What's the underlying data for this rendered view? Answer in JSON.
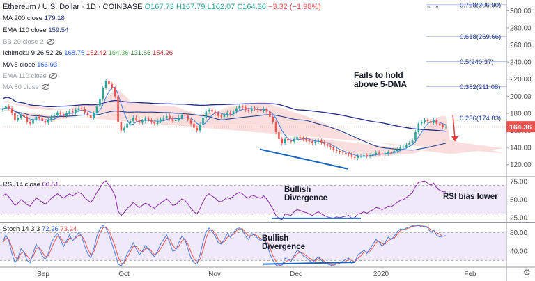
{
  "header": {
    "symbol": "Ethereum / U.S. Dollar · 1D · COINBASE",
    "open": "O167.73",
    "high": "H167.79",
    "low": "L162.07",
    "close": "C164.36",
    "change": "−3.32 (−1.98%)"
  },
  "legend": {
    "ma200": {
      "label": "MA 200 close",
      "value": "179.18"
    },
    "ema110": {
      "label": "EMA 110 close",
      "value": "159.54"
    },
    "bb": {
      "label": "BB 20 close 2"
    },
    "ichimoku": {
      "label": "Ichimoku 9 26 52 26",
      "v1": "168.75",
      "v2": "152.42",
      "v3": "164.36",
      "v4": "131.66",
      "v5": "154.26"
    },
    "ma5": {
      "label": "MA 5 close",
      "value": "166.93"
    },
    "ema110b": {
      "label": "EMA 110 close"
    },
    "ma50": {
      "label": "MA 50 close"
    }
  },
  "rsi_legend": {
    "label": "RSI 14 close",
    "value": "60.51"
  },
  "stoch_legend": {
    "label": "Stoch 14 3 3",
    "k": "72.26",
    "d": "73.24"
  },
  "top_right_arrows": "« »",
  "colors": {
    "up": "#26a69a",
    "down": "#ef5350",
    "ma200": "#1e2a8c",
    "ema110": "#1e3a8a",
    "ma5": "#3d7be0",
    "cloud_red": "#f7c6c6",
    "cloud_green": "#c8e6c9",
    "rsi_bg": "#e8e0f8",
    "stoch_k": "#4a7be0",
    "stoch_d": "#ef5350",
    "fib": "#2962ff",
    "price_tag": "#ef5350",
    "annotation_line": "#1565c0"
  },
  "chart_data": {
    "type": "candlestick",
    "title": "Ethereum / U.S. Dollar · 1D · COINBASE",
    "price_axis": {
      "ylim": [
        110,
        310
      ],
      "ticks": [
        120,
        140,
        160,
        180,
        200,
        220,
        240,
        260,
        280,
        300
      ],
      "tick_labels": [
        "120.00",
        "140.00",
        "160.00",
        "180.00",
        "200.00",
        "220.00",
        "240.00",
        "260.00",
        "280.00",
        "300.00"
      ]
    },
    "x_ticks": [
      "Sep",
      "Oct",
      "Nov",
      "Dec",
      "2020",
      "Feb"
    ],
    "last_price": "164.36",
    "fibonacci": [
      {
        "label": "0.768(306.90)",
        "value": 306.9
      },
      {
        "label": "0.618(269.66)",
        "value": 269.66
      },
      {
        "label": "0.5(240.37)",
        "value": 240.37
      },
      {
        "label": "0.382(211.08)",
        "value": 211.08
      },
      {
        "label": "0.236(174.83)",
        "value": 174.83
      }
    ],
    "close_series": [
      185,
      188,
      186,
      180,
      172,
      175,
      178,
      176,
      170,
      168,
      172,
      176,
      174,
      171,
      169,
      172,
      176,
      178,
      181,
      179,
      177,
      180,
      183,
      181,
      184,
      186,
      185,
      181,
      178,
      175,
      180,
      188,
      197,
      210,
      218,
      214,
      210,
      200,
      170,
      160,
      163,
      168,
      171,
      175,
      172,
      169,
      171,
      174,
      172,
      170,
      168,
      171,
      173,
      175,
      177,
      174,
      171,
      172,
      175,
      178,
      177,
      173,
      168,
      163,
      160,
      167,
      175,
      182,
      184,
      182,
      180,
      177,
      176,
      178,
      181,
      179,
      182,
      186,
      188,
      187,
      184,
      183,
      186,
      185,
      184,
      183,
      185,
      182,
      176,
      170,
      158,
      150,
      145,
      150,
      148,
      147,
      150,
      152,
      151,
      150,
      149,
      147,
      145,
      147,
      148,
      146,
      144,
      142,
      140,
      137,
      136,
      135,
      134,
      133,
      132,
      129,
      128,
      130,
      130,
      131,
      130,
      131,
      132,
      134,
      133,
      132,
      133,
      135,
      134,
      136,
      138,
      140,
      141,
      143,
      145,
      148,
      158,
      168,
      170,
      172,
      171,
      169,
      172,
      168,
      166,
      164,
      164.36
    ],
    "annotations": [
      {
        "text_l1": "Fails to hold",
        "text_l2": "above 5-DMA"
      },
      {
        "text_l1": "Bullish",
        "text_l2": "Divergence",
        "panel": "rsi"
      },
      {
        "text": "RSI bias lower",
        "panel": "rsi"
      },
      {
        "text_l1": "Bullish",
        "text_l2": "Divergence",
        "panel": "stoch"
      }
    ],
    "rsi": {
      "name": "RSI 14 close",
      "value": 60.51,
      "ylim": [
        20,
        80
      ],
      "ticks": [
        25,
        50,
        75
      ],
      "tick_labels": [
        "25.00",
        "50.00",
        "75.00"
      ],
      "values": [
        55,
        58,
        54,
        48,
        42,
        45,
        50,
        47,
        43,
        41,
        47,
        52,
        50,
        46,
        44,
        47,
        52,
        55,
        58,
        55,
        52,
        55,
        58,
        55,
        58,
        60,
        58,
        53,
        49,
        46,
        52,
        60,
        66,
        73,
        76,
        70,
        64,
        55,
        34,
        28,
        32,
        38,
        41,
        46,
        42,
        39,
        42,
        45,
        43,
        40,
        38,
        42,
        45,
        48,
        51,
        47,
        42,
        43,
        47,
        51,
        49,
        44,
        38,
        33,
        30,
        38,
        47,
        55,
        58,
        55,
        52,
        48,
        47,
        50,
        53,
        51,
        55,
        58,
        60,
        58,
        54,
        52,
        56,
        55,
        53,
        52,
        55,
        51,
        44,
        37,
        28,
        24,
        22,
        30,
        29,
        28,
        33,
        36,
        35,
        33,
        32,
        30,
        28,
        31,
        33,
        30,
        28,
        26,
        25,
        24,
        26,
        25,
        26,
        27,
        28,
        24,
        25,
        30,
        31,
        33,
        31,
        34,
        36,
        39,
        38,
        36,
        38,
        41,
        40,
        43,
        46,
        49,
        50,
        53,
        56,
        60,
        68,
        74,
        75,
        76,
        73,
        70,
        73,
        66,
        63,
        61,
        60.51
      ]
    },
    "stoch": {
      "name": "Stoch 14 3 3",
      "k": 72.26,
      "d": 73.24,
      "ylim": [
        10,
        100
      ],
      "ticks": [
        40,
        80
      ],
      "tick_labels": [
        "40.00",
        "80.00"
      ],
      "k_values": [
        60,
        75,
        62,
        35,
        15,
        25,
        45,
        38,
        20,
        15,
        35,
        55,
        45,
        30,
        22,
        35,
        58,
        70,
        78,
        65,
        50,
        62,
        75,
        62,
        70,
        80,
        72,
        50,
        35,
        25,
        45,
        72,
        88,
        95,
        90,
        75,
        55,
        35,
        12,
        8,
        18,
        35,
        45,
        58,
        45,
        32,
        40,
        52,
        45,
        35,
        28,
        40,
        55,
        65,
        75,
        58,
        40,
        42,
        58,
        72,
        65,
        45,
        25,
        15,
        12,
        32,
        60,
        82,
        90,
        82,
        72,
        58,
        55,
        65,
        78,
        70,
        80,
        88,
        90,
        85,
        72,
        65,
        78,
        74,
        68,
        62,
        70,
        55,
        35,
        20,
        10,
        8,
        10,
        25,
        22,
        18,
        30,
        42,
        38,
        30,
        26,
        20,
        15,
        22,
        28,
        20,
        15,
        12,
        10,
        8,
        15,
        14,
        18,
        22,
        25,
        14,
        16,
        32,
        36,
        42,
        35,
        45,
        55,
        65,
        60,
        50,
        58,
        70,
        65,
        72,
        82,
        88,
        86,
        90,
        92,
        95,
        94,
        96,
        92,
        94,
        90,
        80,
        85,
        74,
        70,
        72,
        72.26
      ],
      "d_values": [
        58,
        68,
        66,
        48,
        28,
        22,
        35,
        38,
        30,
        22,
        28,
        45,
        48,
        38,
        28,
        30,
        45,
        60,
        72,
        70,
        58,
        58,
        68,
        66,
        68,
        74,
        74,
        62,
        45,
        32,
        38,
        58,
        78,
        90,
        92,
        84,
        68,
        50,
        28,
        14,
        14,
        26,
        38,
        50,
        50,
        42,
        38,
        45,
        46,
        40,
        32,
        36,
        45,
        56,
        68,
        66,
        52,
        44,
        50,
        62,
        66,
        55,
        38,
        24,
        16,
        22,
        42,
        68,
        84,
        86,
        78,
        66,
        58,
        60,
        70,
        72,
        76,
        84,
        88,
        88,
        80,
        72,
        74,
        76,
        72,
        66,
        66,
        62,
        48,
        30,
        18,
        10,
        10,
        16,
        20,
        22,
        26,
        34,
        38,
        35,
        30,
        25,
        20,
        19,
        24,
        23,
        18,
        14,
        12,
        10,
        12,
        14,
        16,
        18,
        22,
        20,
        17,
        24,
        30,
        38,
        38,
        40,
        48,
        58,
        62,
        56,
        55,
        62,
        66,
        68,
        76,
        84,
        87,
        88,
        90,
        93,
        94,
        95,
        94,
        94,
        92,
        86,
        84,
        80,
        76,
        72,
        73.24
      ]
    }
  }
}
